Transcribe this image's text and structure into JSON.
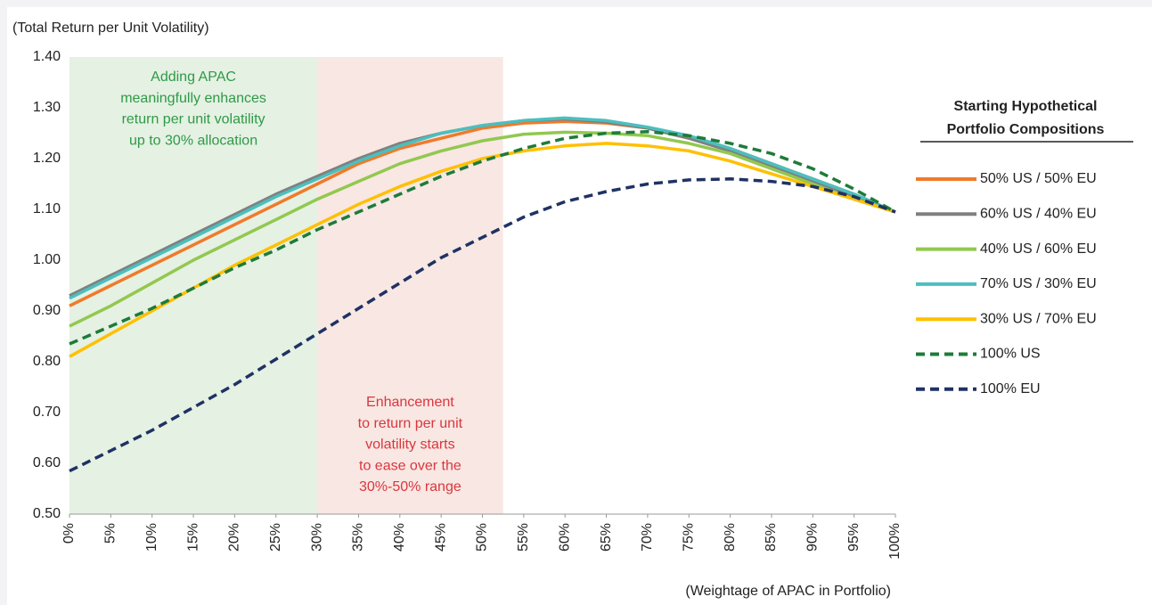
{
  "chart_data": {
    "type": "line",
    "y_axis_label": "(Total Return per Unit Volatility)",
    "x_axis_label": "(Weightage of APAC in Portfolio)",
    "x": [
      0,
      5,
      10,
      15,
      20,
      25,
      30,
      35,
      40,
      45,
      50,
      55,
      60,
      65,
      70,
      75,
      80,
      85,
      90,
      95,
      100
    ],
    "xlim": [
      0,
      100
    ],
    "xticks": [
      {
        "value": 0,
        "label": "0%"
      },
      {
        "value": 5,
        "label": "5%"
      },
      {
        "value": 10,
        "label": "10%"
      },
      {
        "value": 15,
        "label": "15%"
      },
      {
        "value": 20,
        "label": "20%"
      },
      {
        "value": 25,
        "label": "25%"
      },
      {
        "value": 30,
        "label": "30%"
      },
      {
        "value": 35,
        "label": "35%"
      },
      {
        "value": 40,
        "label": "40%"
      },
      {
        "value": 45,
        "label": "45%"
      },
      {
        "value": 50,
        "label": "50%"
      },
      {
        "value": 55,
        "label": "55%"
      },
      {
        "value": 60,
        "label": "60%"
      },
      {
        "value": 65,
        "label": "65%"
      },
      {
        "value": 70,
        "label": "70%"
      },
      {
        "value": 75,
        "label": "75%"
      },
      {
        "value": 80,
        "label": "80%"
      },
      {
        "value": 85,
        "label": "85%"
      },
      {
        "value": 90,
        "label": "90%"
      },
      {
        "value": 95,
        "label": "95%"
      },
      {
        "value": 100,
        "label": "100%"
      }
    ],
    "ylim": [
      0.5,
      1.4
    ],
    "yticks": [
      {
        "value": 0.5,
        "label": "0.50"
      },
      {
        "value": 0.6,
        "label": "0.60"
      },
      {
        "value": 0.7,
        "label": "0.70"
      },
      {
        "value": 0.8,
        "label": "0.80"
      },
      {
        "value": 0.9,
        "label": "0.90"
      },
      {
        "value": 1.0,
        "label": "1.00"
      },
      {
        "value": 1.1,
        "label": "1.10"
      },
      {
        "value": 1.2,
        "label": "1.20"
      },
      {
        "value": 1.3,
        "label": "1.30"
      },
      {
        "value": 1.4,
        "label": "1.40"
      }
    ],
    "bands": [
      {
        "from": 0,
        "to": 30,
        "color": "#e5f1e3",
        "text_color": "#2e9a47",
        "lines": [
          "Adding APAC",
          "meaningfully enhances",
          "return per unit volatility",
          "up to 30% allocation"
        ]
      },
      {
        "from": 30,
        "to": 52.5,
        "color": "#f8e7e3",
        "text_color": "#d9373e",
        "lines": [
          "Enhancement",
          "to return per unit",
          "volatility starts",
          "to ease over the",
          "30%-50% range"
        ]
      }
    ],
    "legend_title_lines": [
      "Starting Hypothetical",
      "Portfolio Compositions"
    ],
    "series": [
      {
        "name": "50% US / 50% EU",
        "color": "#f07a2a",
        "dash": false,
        "values": [
          0.91,
          0.95,
          0.99,
          1.03,
          1.07,
          1.11,
          1.15,
          1.19,
          1.22,
          1.24,
          1.26,
          1.27,
          1.273,
          1.27,
          1.26,
          1.24,
          1.22,
          1.19,
          1.16,
          1.13,
          1.095
        ]
      },
      {
        "name": "60% US / 40% EU",
        "color": "#808080",
        "dash": false,
        "values": [
          0.93,
          0.97,
          1.01,
          1.05,
          1.09,
          1.13,
          1.165,
          1.2,
          1.23,
          1.25,
          1.265,
          1.275,
          1.278,
          1.272,
          1.26,
          1.24,
          1.215,
          1.185,
          1.155,
          1.125,
          1.095
        ]
      },
      {
        "name": "40% US / 60% EU",
        "color": "#92c84f",
        "dash": false,
        "values": [
          0.87,
          0.91,
          0.955,
          1.0,
          1.04,
          1.08,
          1.12,
          1.155,
          1.19,
          1.215,
          1.235,
          1.248,
          1.252,
          1.25,
          1.245,
          1.23,
          1.21,
          1.18,
          1.15,
          1.12,
          1.095
        ]
      },
      {
        "name": "70% US / 30% EU",
        "color": "#4bbfbf",
        "dash": false,
        "values": [
          0.925,
          0.965,
          1.005,
          1.045,
          1.085,
          1.125,
          1.16,
          1.195,
          1.225,
          1.25,
          1.265,
          1.275,
          1.28,
          1.275,
          1.262,
          1.245,
          1.22,
          1.19,
          1.16,
          1.13,
          1.095
        ]
      },
      {
        "name": "30% US / 70% EU",
        "color": "#ffc000",
        "dash": false,
        "values": [
          0.81,
          0.855,
          0.9,
          0.945,
          0.99,
          1.03,
          1.07,
          1.11,
          1.145,
          1.175,
          1.2,
          1.215,
          1.225,
          1.23,
          1.225,
          1.215,
          1.195,
          1.17,
          1.145,
          1.12,
          1.095
        ]
      },
      {
        "name": "100% US",
        "color": "#1e7b3a",
        "dash": true,
        "values": [
          0.835,
          0.87,
          0.905,
          0.945,
          0.985,
          1.02,
          1.06,
          1.095,
          1.13,
          1.165,
          1.195,
          1.22,
          1.24,
          1.25,
          1.253,
          1.245,
          1.23,
          1.21,
          1.18,
          1.14,
          1.095
        ]
      },
      {
        "name": "100% EU",
        "color": "#1f3263",
        "dash": true,
        "values": [
          0.585,
          0.625,
          0.665,
          0.71,
          0.755,
          0.805,
          0.855,
          0.905,
          0.955,
          1.005,
          1.045,
          1.085,
          1.115,
          1.135,
          1.15,
          1.158,
          1.16,
          1.155,
          1.145,
          1.125,
          1.095
        ]
      }
    ]
  }
}
